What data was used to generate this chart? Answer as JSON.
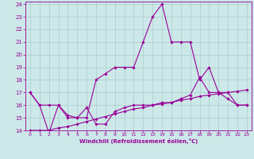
{
  "xlabel": "Windchill (Refroidissement éolien,°C)",
  "background_color": "#cce8e8",
  "grid_color": "#aacccc",
  "line_color": "#990099",
  "xlim": [
    -0.5,
    23.5
  ],
  "ylim": [
    14,
    24.2
  ],
  "yticks": [
    14,
    15,
    16,
    17,
    18,
    19,
    20,
    21,
    22,
    23,
    24
  ],
  "xticks": [
    0,
    1,
    2,
    3,
    4,
    5,
    6,
    7,
    8,
    9,
    10,
    11,
    12,
    13,
    14,
    15,
    16,
    17,
    18,
    19,
    20,
    21,
    22,
    23
  ],
  "series": [
    {
      "x": [
        0,
        1,
        2,
        3,
        4,
        5,
        6,
        7,
        8,
        9,
        10,
        11,
        12,
        13,
        14,
        15,
        16,
        17,
        18,
        19,
        20,
        21,
        22,
        23
      ],
      "y": [
        17,
        16,
        16,
        16,
        15,
        15,
        15,
        18,
        18.5,
        19,
        19,
        19,
        21,
        23,
        24,
        21,
        21,
        21,
        18,
        19,
        17,
        17,
        16,
        16
      ]
    },
    {
      "x": [
        0,
        1,
        2,
        3,
        4,
        5,
        6,
        7,
        8,
        9,
        10,
        11,
        12,
        13,
        14,
        15,
        16,
        17,
        18,
        19,
        20,
        21,
        22,
        23
      ],
      "y": [
        17,
        16,
        13.8,
        16,
        15.2,
        15,
        15.8,
        14.5,
        14.5,
        15.5,
        15.8,
        16,
        16,
        16,
        16.2,
        16.2,
        16.5,
        16.8,
        18.2,
        17,
        17,
        16.5,
        16,
        16
      ]
    },
    {
      "x": [
        0,
        1,
        2,
        3,
        4,
        5,
        6,
        7,
        8,
        9,
        10,
        11,
        12,
        13,
        14,
        15,
        16,
        17,
        18,
        19,
        20,
        21,
        22,
        23
      ],
      "y": [
        14.0,
        14.0,
        14.0,
        14.2,
        14.3,
        14.5,
        14.7,
        14.9,
        15.1,
        15.3,
        15.5,
        15.7,
        15.8,
        16.0,
        16.1,
        16.2,
        16.4,
        16.5,
        16.7,
        16.8,
        16.9,
        17.0,
        17.1,
        17.2
      ]
    }
  ]
}
